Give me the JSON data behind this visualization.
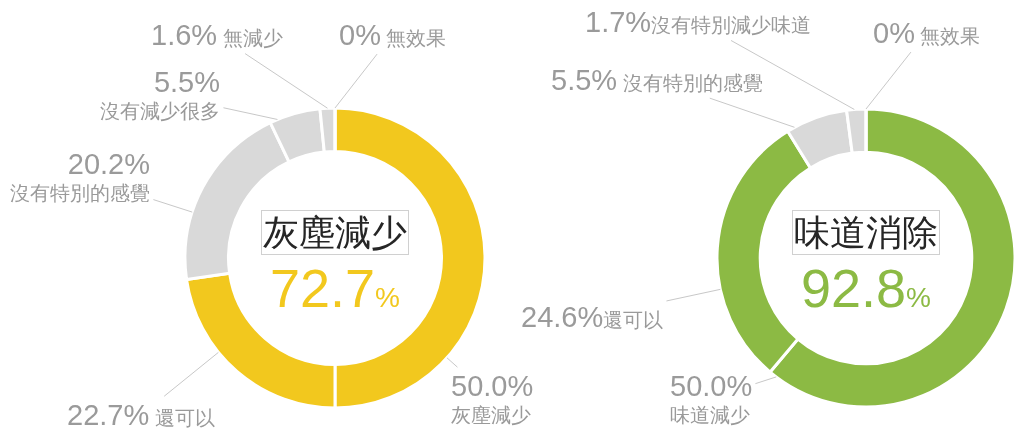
{
  "chart_data": [
    {
      "type": "donut",
      "title": "灰塵減少",
      "annotations": [
        "72.7%"
      ],
      "categories": [
        "灰塵減少",
        "還可以",
        "沒有特別的感覺",
        "沒有減少很多",
        "無減少",
        "無效果"
      ],
      "values": [
        50.0,
        22.7,
        20.2,
        5.5,
        1.6,
        0
      ],
      "value_labels": [
        "50.0%",
        "22.7%",
        "20.2%",
        "5.5%",
        "1.6%",
        "0%"
      ],
      "colors": [
        "#f2c81e",
        "#f2c81e",
        "#d9d9d9",
        "#d9d9d9",
        "#d9d9d9",
        "#d9d9d9"
      ]
    },
    {
      "type": "donut",
      "title": "味道消除",
      "annotations": [
        "92.8%"
      ],
      "categories": [
        "味道減少",
        "還可以",
        "沒有特別的感覺",
        "沒有特別減少味道",
        "無效果"
      ],
      "values": [
        50.0,
        24.6,
        5.5,
        1.7,
        0
      ],
      "value_labels": [
        "50.0%",
        "24.6%",
        "5.5%",
        "1.7%",
        "0%"
      ],
      "colors": [
        "#8cba44",
        "#8cba44",
        "#d9d9d9",
        "#d9d9d9",
        "#d9d9d9"
      ]
    }
  ]
}
